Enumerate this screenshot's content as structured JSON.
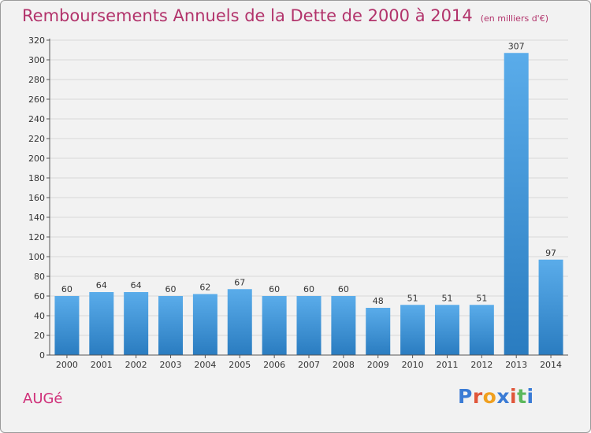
{
  "header": {
    "title": "Remboursements Annuels de la Dette de 2000 à 2014",
    "subtitle": "(en milliers d'€)"
  },
  "city": "AUGé",
  "logo": {
    "letters": [
      "P",
      "r",
      "o",
      "x",
      "i",
      "t",
      "i"
    ],
    "colors": [
      "#3a7bd5",
      "#e0563a",
      "#f0a020",
      "#3a7bd5",
      "#e0563a",
      "#5cb85c",
      "#3a7bd5"
    ]
  },
  "colors": {
    "bar_light": "#5aacea",
    "bar_dark": "#2a7cc0",
    "grid": "#d8d8d8",
    "axis": "#555555"
  },
  "chart_data": {
    "type": "bar",
    "title": "Remboursements Annuels de la Dette de 2000 à 2014",
    "subtitle": "(en milliers d'€)",
    "categories": [
      "2000",
      "2001",
      "2002",
      "2003",
      "2004",
      "2005",
      "2006",
      "2007",
      "2008",
      "2009",
      "2010",
      "2011",
      "2012",
      "2013",
      "2014"
    ],
    "values": [
      60,
      64,
      64,
      60,
      62,
      67,
      60,
      60,
      60,
      48,
      51,
      51,
      51,
      307,
      97
    ],
    "ylim": [
      0,
      320
    ],
    "yticks": [
      0,
      20,
      40,
      60,
      80,
      100,
      120,
      140,
      160,
      180,
      200,
      220,
      240,
      260,
      280,
      300,
      320
    ],
    "grid": true,
    "xlabel": "",
    "ylabel": ""
  }
}
